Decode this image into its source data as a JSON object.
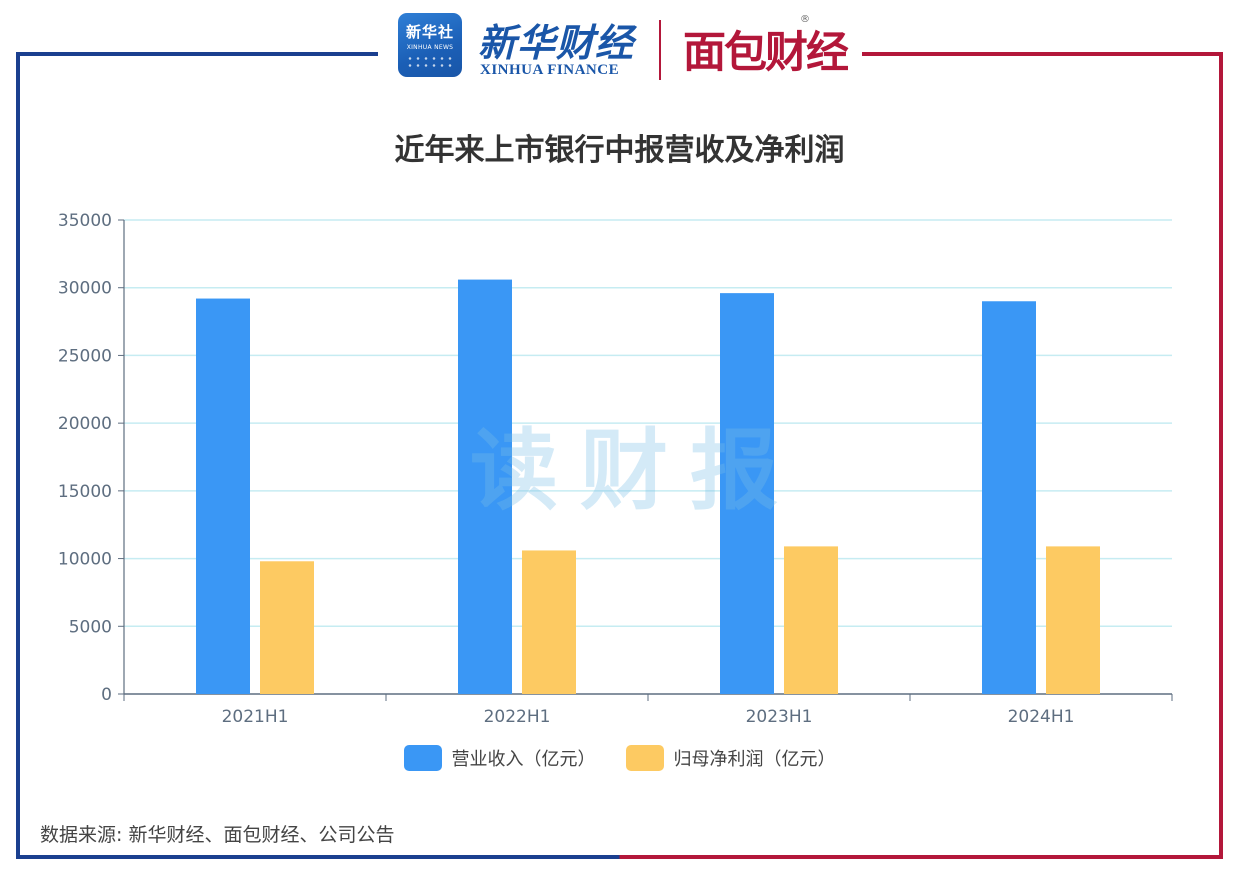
{
  "header": {
    "badge_title": "新华社",
    "badge_sub": "XINHUA NEWS",
    "brand_cn": "新华财经",
    "brand_en": "XINHUA FINANCE",
    "brand2": "面包财经",
    "registered_mark": "®"
  },
  "watermark": "读财报",
  "source_note": "数据来源: 新华财经、面包财经、公司公告",
  "colors": {
    "series_revenue": "#3a97f5",
    "series_profit": "#fdca62",
    "grid": "#c6ecf2",
    "axis": "#5e6e80"
  },
  "chart_data": {
    "type": "bar",
    "title": "近年来上市银行中报营收及净利润",
    "categories": [
      "2021H1",
      "2022H1",
      "2023H1",
      "2024H1"
    ],
    "series": [
      {
        "name": "营业收入（亿元）",
        "values": [
          29200,
          30600,
          29600,
          29000
        ]
      },
      {
        "name": "归母净利润（亿元）",
        "values": [
          9800,
          10600,
          10900,
          10900
        ]
      }
    ],
    "yticks": [
      "0",
      "5000",
      "10000",
      "15000",
      "20000",
      "25000",
      "30000",
      "35000"
    ],
    "ylim": [
      0,
      35000
    ],
    "grid": true,
    "legend_position": "bottom"
  }
}
